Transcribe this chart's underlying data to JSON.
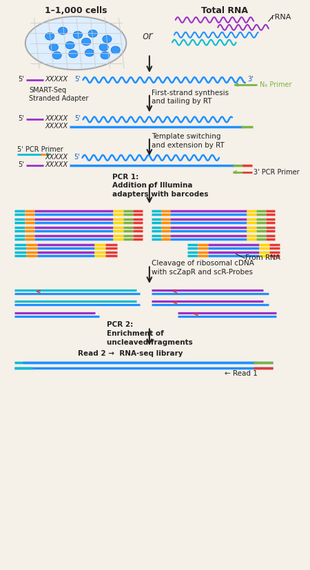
{
  "bg_color": "#f5f0e8",
  "colors": {
    "blue": "#1e90ff",
    "purple": "#9b30c8",
    "cyan": "#00bcd4",
    "green": "#7cb342",
    "red": "#e53935",
    "orange": "#ff8c00",
    "yellow": "#ffd600",
    "gray": "#888888"
  },
  "title_cells": "1–1,000 cells",
  "title_rna": "Total RNA",
  "label_rRNA": "rRNA",
  "label_or": "or",
  "label_smart": "SMART-Seq\nStranded Adapter",
  "label_n6": "N₆ Primer",
  "label_5prime": "5'",
  "label_3prime": "3'",
  "label_first_strand": "First-strand synthesis\nand tailing by RT",
  "label_template": "Template switching\nand extension by RT",
  "label_5pcr": "5' PCR Primer",
  "label_3pcr": "3' PCR Primer",
  "label_pcr1": "PCR 1:\nAddition of Illumina\nadapters with barcodes",
  "label_from_rna": "From RNA",
  "label_cleavage": "Cleavage of ribosomal cDNA\nwith scZapR and scR-Probes",
  "label_pcr2": "PCR 2:\nEnrichment of\nuncleaved fragments",
  "label_read2": "Read 2 →",
  "label_rnaseq": "RNA-seq library",
  "label_read1": "← Read 1"
}
